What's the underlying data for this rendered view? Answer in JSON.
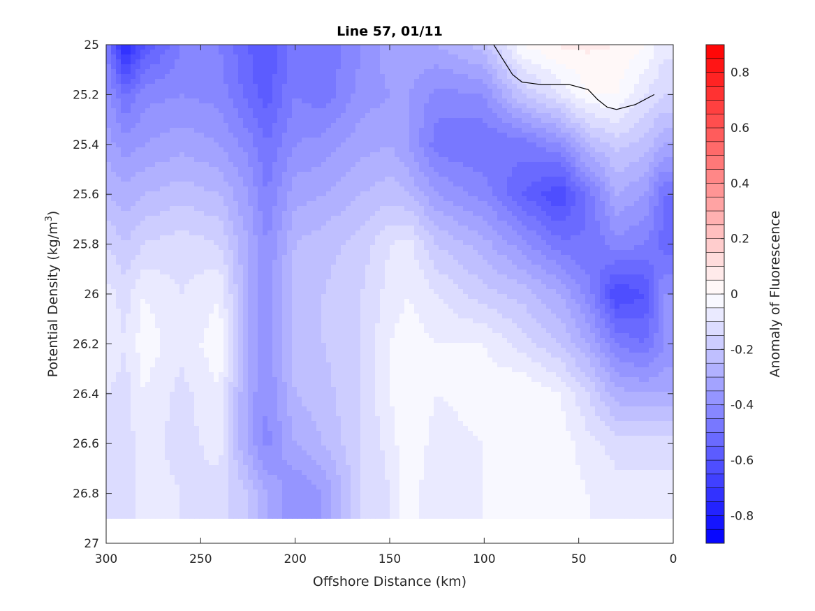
{
  "chart_data": {
    "type": "heatmap",
    "title": "Line 57, 01/11",
    "xlabel": "Offshore Distance (km)",
    "ylabel_main": "Potential Density (kg/m",
    "ylabel_sup": "3",
    "ylabel_close": ")",
    "colorbar_label": "Anomaly of Fluorescence",
    "xlim": [
      300,
      0
    ],
    "ylim": [
      25,
      27
    ],
    "x_reversed": true,
    "y_reversed": true,
    "x_ticks": [
      300,
      250,
      200,
      150,
      100,
      50,
      0
    ],
    "y_ticks": [
      25,
      25.2,
      25.4,
      25.6,
      25.8,
      26,
      26.2,
      26.4,
      26.6,
      26.8,
      27
    ],
    "x_tick_labels": [
      "300",
      "250",
      "200",
      "150",
      "100",
      "50",
      "0"
    ],
    "y_tick_labels": [
      "25",
      "25.2",
      "25.4",
      "25.6",
      "25.8",
      "26",
      "26.2",
      "26.4",
      "26.6",
      "26.8",
      "27"
    ],
    "colorbar_range": [
      -0.9,
      0.9
    ],
    "colorbar_ticks": [
      0.8,
      0.6,
      0.4,
      0.2,
      0,
      -0.2,
      -0.4,
      -0.6,
      -0.8
    ],
    "colorbar_tick_labels": [
      "0.8",
      "0.6",
      "0.4",
      "0.2",
      "0",
      "-0.2",
      "-0.4",
      "-0.6",
      "-0.8"
    ],
    "colorbar_levels": 36,
    "colormap": {
      "negative": "#0000ff",
      "zero": "#ffffff",
      "positive": "#ff0000"
    },
    "data_extent_sigma_max": 26.9,
    "grid": false,
    "field_samples": {
      "x": [
        300,
        290,
        280,
        260,
        240,
        225,
        215,
        200,
        185,
        165,
        150,
        140,
        125,
        100,
        80,
        60,
        45,
        30,
        15,
        5
      ],
      "y": [
        25.0,
        25.2,
        25.4,
        25.6,
        25.8,
        26.0,
        26.2,
        26.4,
        26.6,
        26.8
      ],
      "z": [
        [
          -0.45,
          -0.78,
          -0.6,
          -0.45,
          -0.45,
          -0.55,
          -0.6,
          -0.45,
          -0.5,
          -0.4,
          -0.32,
          -0.3,
          -0.3,
          -0.22,
          0.0,
          0.06,
          0.06,
          0.05,
          0.0,
          -0.08
        ],
        [
          -0.38,
          -0.5,
          -0.42,
          -0.4,
          -0.42,
          -0.52,
          -0.58,
          -0.45,
          -0.48,
          -0.38,
          -0.35,
          -0.35,
          -0.42,
          -0.4,
          -0.2,
          -0.1,
          0.0,
          0.0,
          -0.1,
          -0.15
        ],
        [
          -0.32,
          -0.38,
          -0.35,
          -0.32,
          -0.35,
          -0.42,
          -0.5,
          -0.4,
          -0.38,
          -0.32,
          -0.3,
          -0.35,
          -0.48,
          -0.5,
          -0.48,
          -0.4,
          -0.25,
          -0.18,
          -0.22,
          -0.3
        ],
        [
          -0.25,
          -0.28,
          -0.25,
          -0.22,
          -0.25,
          -0.35,
          -0.45,
          -0.32,
          -0.3,
          -0.25,
          -0.22,
          -0.25,
          -0.35,
          -0.42,
          -0.55,
          -0.65,
          -0.48,
          -0.3,
          -0.35,
          -0.5
        ],
        [
          -0.15,
          -0.2,
          -0.15,
          -0.12,
          -0.15,
          -0.3,
          -0.4,
          -0.25,
          -0.22,
          -0.18,
          -0.1,
          -0.08,
          -0.2,
          -0.28,
          -0.38,
          -0.48,
          -0.5,
          -0.42,
          -0.45,
          -0.52
        ],
        [
          -0.08,
          -0.12,
          -0.05,
          -0.1,
          -0.05,
          -0.3,
          -0.38,
          -0.22,
          -0.2,
          -0.15,
          -0.08,
          -0.05,
          -0.1,
          -0.18,
          -0.22,
          -0.3,
          -0.42,
          -0.65,
          -0.6,
          -0.4
        ],
        [
          -0.05,
          -0.1,
          -0.02,
          -0.08,
          -0.02,
          -0.3,
          -0.38,
          -0.22,
          -0.2,
          -0.15,
          -0.05,
          -0.02,
          -0.05,
          -0.05,
          -0.12,
          -0.2,
          -0.3,
          -0.45,
          -0.5,
          -0.4
        ],
        [
          -0.1,
          -0.12,
          -0.05,
          -0.12,
          -0.05,
          -0.32,
          -0.4,
          -0.25,
          -0.22,
          -0.15,
          -0.05,
          0.0,
          -0.05,
          -0.02,
          0.0,
          -0.05,
          -0.15,
          -0.28,
          -0.3,
          -0.3
        ],
        [
          -0.12,
          -0.12,
          -0.08,
          -0.12,
          -0.08,
          -0.32,
          -0.42,
          -0.3,
          -0.25,
          -0.15,
          -0.08,
          0.0,
          -0.08,
          -0.05,
          0.0,
          -0.02,
          -0.08,
          -0.12,
          -0.12,
          -0.12
        ],
        [
          -0.1,
          -0.12,
          -0.08,
          -0.1,
          -0.12,
          -0.2,
          -0.3,
          -0.4,
          -0.35,
          -0.15,
          -0.1,
          -0.02,
          -0.1,
          -0.05,
          0.0,
          -0.02,
          -0.05,
          -0.08,
          -0.08,
          -0.08
        ]
      ]
    },
    "zero_contour": {
      "x": [
        95,
        90,
        85,
        80,
        70,
        55,
        45,
        40,
        35,
        30,
        20,
        10
      ],
      "y": [
        25.0,
        25.06,
        25.12,
        25.15,
        25.16,
        25.16,
        25.18,
        25.22,
        25.25,
        25.26,
        25.24,
        25.2
      ]
    }
  }
}
